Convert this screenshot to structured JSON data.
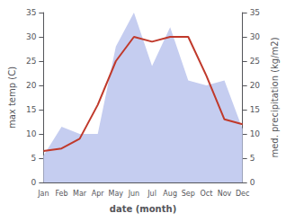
{
  "chart_data": {
    "type": "line",
    "categories": [
      "Jan",
      "Feb",
      "Mar",
      "Apr",
      "May",
      "Jun",
      "Jul",
      "Aug",
      "Sep",
      "Oct",
      "Nov",
      "Dec"
    ],
    "series": [
      {
        "type": "area",
        "color": "#c5cdf0",
        "axis": "y2",
        "values": [
          5.5,
          11.5,
          10.0,
          10.0,
          28.0,
          35.0,
          24.0,
          32.0,
          21.0,
          20.0,
          21.0,
          11.0
        ]
      },
      {
        "type": "line",
        "color": "#c0392b",
        "values": [
          6.5,
          7.0,
          9.0,
          16.0,
          25.0,
          30.0,
          29.0,
          30.0,
          30.0,
          22.0,
          13.0,
          12.0
        ]
      }
    ],
    "xlabel": "date (month)",
    "ylabel": "max temp (C)",
    "y2label": "med. precipitation (kg/m2)",
    "ylim": [
      0,
      35
    ],
    "yticks": [
      0,
      5,
      10,
      15,
      20,
      25,
      30,
      35
    ],
    "y2lim": [
      0,
      35
    ],
    "y2ticks": [
      0,
      5,
      10,
      15,
      20,
      25,
      30,
      35
    ],
    "grid": false
  }
}
